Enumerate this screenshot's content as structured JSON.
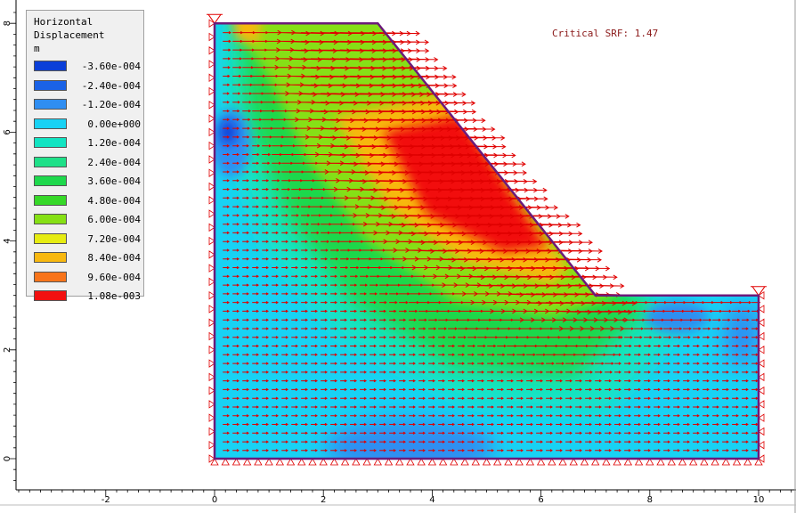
{
  "legend": {
    "title_line1": "Horizontal",
    "title_line2": "Displacement",
    "unit": "m",
    "entries": [
      {
        "label": "-3.60e-004",
        "color": "#0b3fd8"
      },
      {
        "label": "-2.40e-004",
        "color": "#1a62e6"
      },
      {
        "label": "-1.20e-004",
        "color": "#2f8ef2"
      },
      {
        "label": "0.00e+000",
        "color": "#18d2f4"
      },
      {
        "label": "1.20e-004",
        "color": "#12e4c2"
      },
      {
        "label": "2.40e-004",
        "color": "#1ee088"
      },
      {
        "label": "3.60e-004",
        "color": "#1ed84c"
      },
      {
        "label": "4.80e-004",
        "color": "#36d828"
      },
      {
        "label": "6.00e-004",
        "color": "#86e014"
      },
      {
        "label": "7.20e-004",
        "color": "#e6ec12"
      },
      {
        "label": "8.40e-004",
        "color": "#f8b810"
      },
      {
        "label": "9.60e-004",
        "color": "#f8741a"
      },
      {
        "label": "1.08e-003",
        "color": "#f21010"
      }
    ]
  },
  "annotation": "Critical SRF: 1.47",
  "chart_data": {
    "type": "heatmap",
    "title": "",
    "xlabel": "",
    "ylabel": "",
    "xlim": [
      -3.6,
      10.6
    ],
    "ylim": [
      -0.6,
      8.2
    ],
    "x_ticks": [
      "-2",
      "0",
      "2",
      "4",
      "6",
      "8",
      "10"
    ],
    "y_ticks": [
      "0",
      "2",
      "4",
      "6",
      "8"
    ],
    "geometry": {
      "boundary": [
        [
          0,
          0
        ],
        [
          10,
          0
        ],
        [
          10,
          3
        ],
        [
          7,
          3
        ],
        [
          3,
          8
        ],
        [
          0,
          8
        ],
        [
          0,
          0
        ]
      ],
      "boundary_color": "#6b1a7a"
    },
    "supports": {
      "left_edge": {
        "x": 0,
        "y_range": [
          0,
          8
        ],
        "type": "pin"
      },
      "right_edge": {
        "x": 10,
        "y_range": [
          0,
          3
        ],
        "type": "pin"
      },
      "base": {
        "y": 0,
        "x_range": [
          0,
          10
        ],
        "type": "pin"
      }
    },
    "vector_field": {
      "name": "displacement arrows",
      "color": "#e00000",
      "direction": "horizontal (+x)"
    },
    "background_value_color": "#18d2f4",
    "contour_zones": [
      {
        "description": "slip band",
        "value": 0.00108,
        "color": "#f21010"
      },
      {
        "description": "slip band edge",
        "value": 0.00084,
        "color": "#f8b810"
      },
      {
        "description": "mid band",
        "value": 0.0006,
        "color": "#86e014"
      },
      {
        "description": "outer band",
        "value": 0.00036,
        "color": "#1ed84c"
      },
      {
        "description": "outer halo",
        "value": 0.00012,
        "color": "#12e4c2"
      },
      {
        "description": "left face pocket",
        "value": -0.00036,
        "color": "#0b3fd8"
      },
      {
        "description": "toe pocket",
        "value": -0.00012,
        "color": "#2f8ef2"
      },
      {
        "description": "base pocket",
        "value": -0.00012,
        "color": "#2f8ef2"
      }
    ],
    "critical_srf": 1.47
  }
}
